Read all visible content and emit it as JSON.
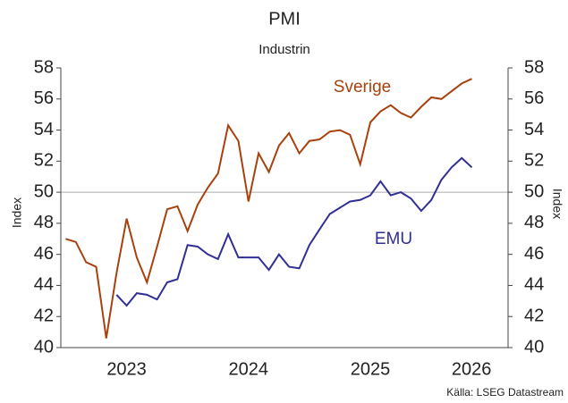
{
  "chart_data": {
    "type": "line",
    "title": "PMI",
    "subtitle": "Industrin",
    "y_label": "Index",
    "y2_label": "Index",
    "source": "Källa: LSEG Datastream",
    "x": [
      2023,
      2023.083,
      2023.167,
      2023.25,
      2023.333,
      2023.417,
      2023.5,
      2023.583,
      2023.667,
      2023.75,
      2023.833,
      2023.917,
      2024,
      2024.083,
      2024.167,
      2024.25,
      2024.333,
      2024.417,
      2024.5,
      2024.583,
      2024.667,
      2024.75,
      2024.833,
      2024.917,
      2025,
      2025.083,
      2025.167,
      2025.25,
      2025.333,
      2025.417,
      2025.5,
      2025.583,
      2025.667,
      2025.75,
      2025.833,
      2025.917,
      2026,
      2026.083,
      2026.167,
      2026.25,
      2026.333
    ],
    "series": [
      {
        "name": "Sverige",
        "color": "#a8410d",
        "values": [
          47.0,
          46.8,
          45.5,
          45.2,
          40.6,
          44.8,
          48.3,
          45.8,
          44.2,
          46.5,
          48.9,
          49.1,
          47.5,
          49.2,
          50.3,
          51.2,
          54.3,
          53.3,
          49.4,
          52.5,
          51.3,
          53.0,
          53.8,
          52.5,
          53.3,
          53.4,
          53.9,
          54.0,
          53.7,
          51.8,
          54.5,
          55.2,
          55.6,
          55.1,
          54.8,
          55.5,
          56.1,
          56.0,
          56.5,
          57.0,
          57.3
        ]
      },
      {
        "name": "EMU",
        "color": "#2f2f96",
        "values": [
          null,
          null,
          null,
          null,
          null,
          43.4,
          42.7,
          43.5,
          43.4,
          43.1,
          44.2,
          44.4,
          46.6,
          46.5,
          46.0,
          45.7,
          47.3,
          45.8,
          45.8,
          45.8,
          45.0,
          46.0,
          45.2,
          45.1,
          46.6,
          47.6,
          48.6,
          49.0,
          49.4,
          49.5,
          49.8,
          50.7,
          49.8,
          50.0,
          49.6,
          48.8,
          49.5,
          50.8,
          51.6,
          52.2,
          51.6
        ]
      }
    ],
    "xlim": [
      2022.96,
      2026.63
    ],
    "xticks": [
      {
        "value": 2023.5,
        "label": "2023"
      },
      {
        "value": 2024.5,
        "label": "2024"
      },
      {
        "value": 2025.5,
        "label": "2025"
      },
      {
        "value": 2026.33,
        "label": "2026"
      }
    ],
    "ylim": [
      40,
      58
    ],
    "yticks": [
      40,
      42,
      44,
      46,
      48,
      50,
      52,
      54,
      56,
      58
    ],
    "y2lim": [
      40,
      58
    ],
    "y2ticks": [
      40,
      42,
      44,
      46,
      48,
      50,
      52,
      54,
      56,
      58
    ],
    "reference_line": 50,
    "reference_color": "#aaaaaa"
  }
}
